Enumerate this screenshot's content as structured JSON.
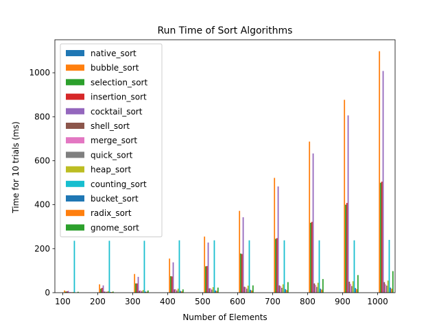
{
  "chart_data": {
    "type": "bar",
    "title": "Run Time of Sort Algorithms",
    "xlabel": "Number of Elements",
    "ylabel": "Time for 10 trials (ms)",
    "ylim": [
      0,
      1150
    ],
    "yticks": [
      0,
      200,
      400,
      600,
      800,
      1000
    ],
    "categories": [
      100,
      200,
      300,
      400,
      500,
      600,
      700,
      800,
      900,
      1000
    ],
    "legend_position": "upper-left",
    "series": [
      {
        "name": "native_sort",
        "color": "#1f77b4",
        "values": [
          0.5,
          0.5,
          1,
          1,
          1,
          1,
          1,
          1,
          1,
          1
        ]
      },
      {
        "name": "bubble_sort",
        "color": "#ff7f0e",
        "values": [
          10,
          38,
          85,
          155,
          255,
          372,
          522,
          687,
          877,
          1098
        ]
      },
      {
        "name": "selection_sort",
        "color": "#2ca02c",
        "values": [
          5,
          18,
          42,
          75,
          120,
          178,
          245,
          318,
          400,
          500
        ]
      },
      {
        "name": "insertion_sort",
        "color": "#d62728",
        "values": [
          6,
          22,
          42,
          74,
          121,
          176,
          248,
          322,
          408,
          505
        ]
      },
      {
        "name": "cocktail_sort",
        "color": "#9467bd",
        "values": [
          8,
          33,
          72,
          138,
          228,
          343,
          483,
          633,
          806,
          1008
        ]
      },
      {
        "name": "shell_sort",
        "color": "#8c564b",
        "values": [
          2,
          5,
          9,
          15,
          20,
          27,
          33,
          42,
          50,
          48
        ]
      },
      {
        "name": "merge_sort",
        "color": "#e377c2",
        "values": [
          3,
          5,
          10,
          16,
          20,
          25,
          30,
          35,
          40,
          38
        ]
      },
      {
        "name": "quick_sort",
        "color": "#7f7f7f",
        "values": [
          2,
          4,
          7,
          10,
          14,
          18,
          22,
          26,
          30,
          32
        ]
      },
      {
        "name": "heap_sort",
        "color": "#bcbd22",
        "values": [
          3,
          7,
          12,
          18,
          25,
          32,
          38,
          45,
          52,
          55
        ]
      },
      {
        "name": "counting_sort",
        "color": "#17becf",
        "values": [
          236,
          236,
          236,
          238,
          238,
          238,
          238,
          238,
          238,
          240
        ]
      },
      {
        "name": "bucket_sort",
        "color": "#1f77b4",
        "values": [
          1,
          3,
          5,
          8,
          10,
          13,
          16,
          18,
          21,
          23
        ]
      },
      {
        "name": "radix_sort",
        "color": "#ff7f0e",
        "values": [
          1,
          3,
          4,
          6,
          8,
          10,
          12,
          14,
          16,
          18
        ]
      },
      {
        "name": "gnome_sort",
        "color": "#2ca02c",
        "values": [
          4,
          5,
          10,
          15,
          23,
          33,
          48,
          62,
          80,
          98
        ]
      }
    ]
  }
}
